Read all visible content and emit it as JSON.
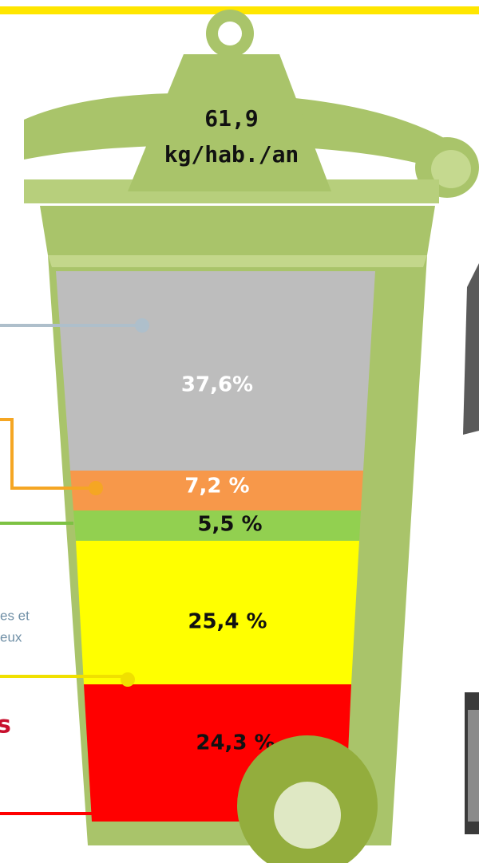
{
  "weight": {
    "value": "61,9",
    "unit": "kg/hab./an"
  },
  "segments": [
    {
      "label": "37,6%",
      "color": "#bdbdbd",
      "text_color": "#ffffff"
    },
    {
      "label": "7,2 %",
      "color": "#f7984a",
      "text_color": "#ffffff"
    },
    {
      "label": "5,5 %",
      "color": "#92d050",
      "text_color": "#111111"
    },
    {
      "label": "25,4 %",
      "color": "#ffff00",
      "text_color": "#111111"
    },
    {
      "label": "24,3 %",
      "color": "#ff0000",
      "text_color": "#111111"
    }
  ],
  "side_texts": [
    "es et",
    "eux",
    "s"
  ]
}
